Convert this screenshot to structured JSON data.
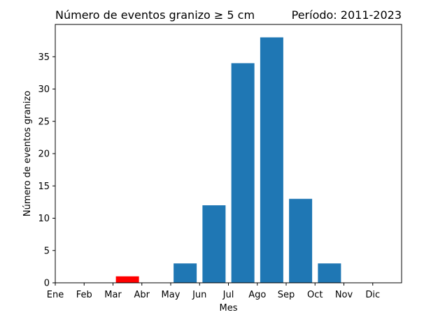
{
  "chart_data": {
    "type": "bar",
    "title": "Número de eventos granizo ≥ 5 cm",
    "subtitle": "Período: 2011-2023",
    "xlabel": "Mes",
    "ylabel": "Número de eventos granizo",
    "categories": [
      "Ene",
      "Feb",
      "Mar",
      "Abr",
      "May",
      "Jun",
      "Jul",
      "Ago",
      "Sep",
      "Oct",
      "Nov",
      "Dic"
    ],
    "values": [
      0,
      0,
      1,
      0,
      3,
      12,
      34,
      38,
      13,
      3,
      0,
      0
    ],
    "highlight_index": 2,
    "bar_color": "#1f77b4",
    "highlight_color": "#ff0000",
    "yticks": [
      0,
      5,
      10,
      15,
      20,
      25,
      30,
      35
    ],
    "ylim": [
      0,
      40
    ],
    "xlim": [
      0,
      12
    ],
    "grid": false,
    "legend": false
  }
}
